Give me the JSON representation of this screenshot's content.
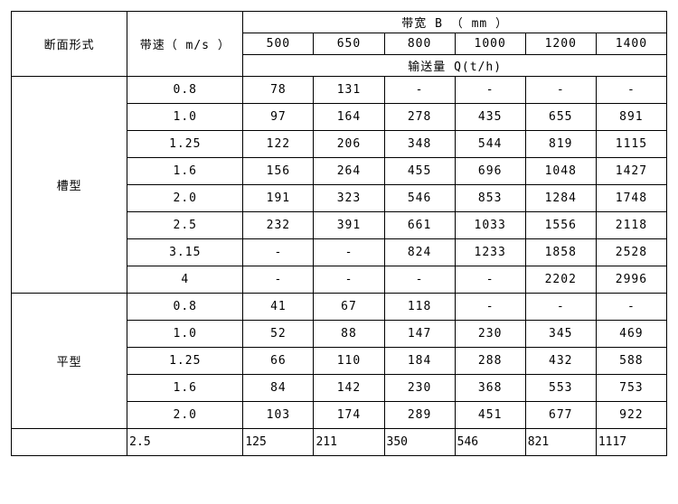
{
  "header": {
    "section_label": "断面形式",
    "speed_label": "带速（ m/s ）",
    "width_label": "带宽 B （ mm ）",
    "qty_label": "输送量 Q(t/h)",
    "widths": [
      "500",
      "650",
      "800",
      "1000",
      "1200",
      "1400"
    ]
  },
  "sections": [
    {
      "name": "槽型",
      "rows": [
        {
          "speed": "0.8",
          "q": [
            "78",
            "131",
            "-",
            "-",
            "-",
            "-"
          ]
        },
        {
          "speed": "1.0",
          "q": [
            "97",
            "164",
            "278",
            "435",
            "655",
            "891"
          ]
        },
        {
          "speed": "1.25",
          "q": [
            "122",
            "206",
            "348",
            "544",
            "819",
            "1115"
          ]
        },
        {
          "speed": "1.6",
          "q": [
            "156",
            "264",
            "455",
            "696",
            "1048",
            "1427"
          ]
        },
        {
          "speed": "2.0",
          "q": [
            "191",
            "323",
            "546",
            "853",
            "1284",
            "1748"
          ]
        },
        {
          "speed": "2.5",
          "q": [
            "232",
            "391",
            "661",
            "1033",
            "1556",
            "2118"
          ]
        },
        {
          "speed": "3.15",
          "q": [
            "-",
            "-",
            "824",
            "1233",
            "1858",
            "2528"
          ]
        },
        {
          "speed": "4",
          "q": [
            "-",
            "-",
            "-",
            "-",
            "2202",
            "2996"
          ]
        }
      ]
    },
    {
      "name": "平型",
      "rows": [
        {
          "speed": "0.8",
          "q": [
            "41",
            "67",
            "118",
            "-",
            "-",
            "-"
          ]
        },
        {
          "speed": "1.0",
          "q": [
            "52",
            "88",
            "147",
            "230",
            "345",
            "469"
          ]
        },
        {
          "speed": "1.25",
          "q": [
            "66",
            "110",
            "184",
            "288",
            "432",
            "588"
          ]
        },
        {
          "speed": "1.6",
          "q": [
            "84",
            "142",
            "230",
            "368",
            "553",
            "753"
          ]
        },
        {
          "speed": "2.0",
          "q": [
            "103",
            "174",
            "289",
            "451",
            "677",
            "922"
          ]
        }
      ]
    }
  ],
  "trailing_row": {
    "speed": "2.5",
    "q": [
      "125",
      "211",
      "350",
      "546",
      "821",
      "1117"
    ]
  },
  "style": {
    "border_color": "#000000",
    "background": "#ffffff",
    "font_family": "SimSun",
    "font_size_pt": 10
  }
}
